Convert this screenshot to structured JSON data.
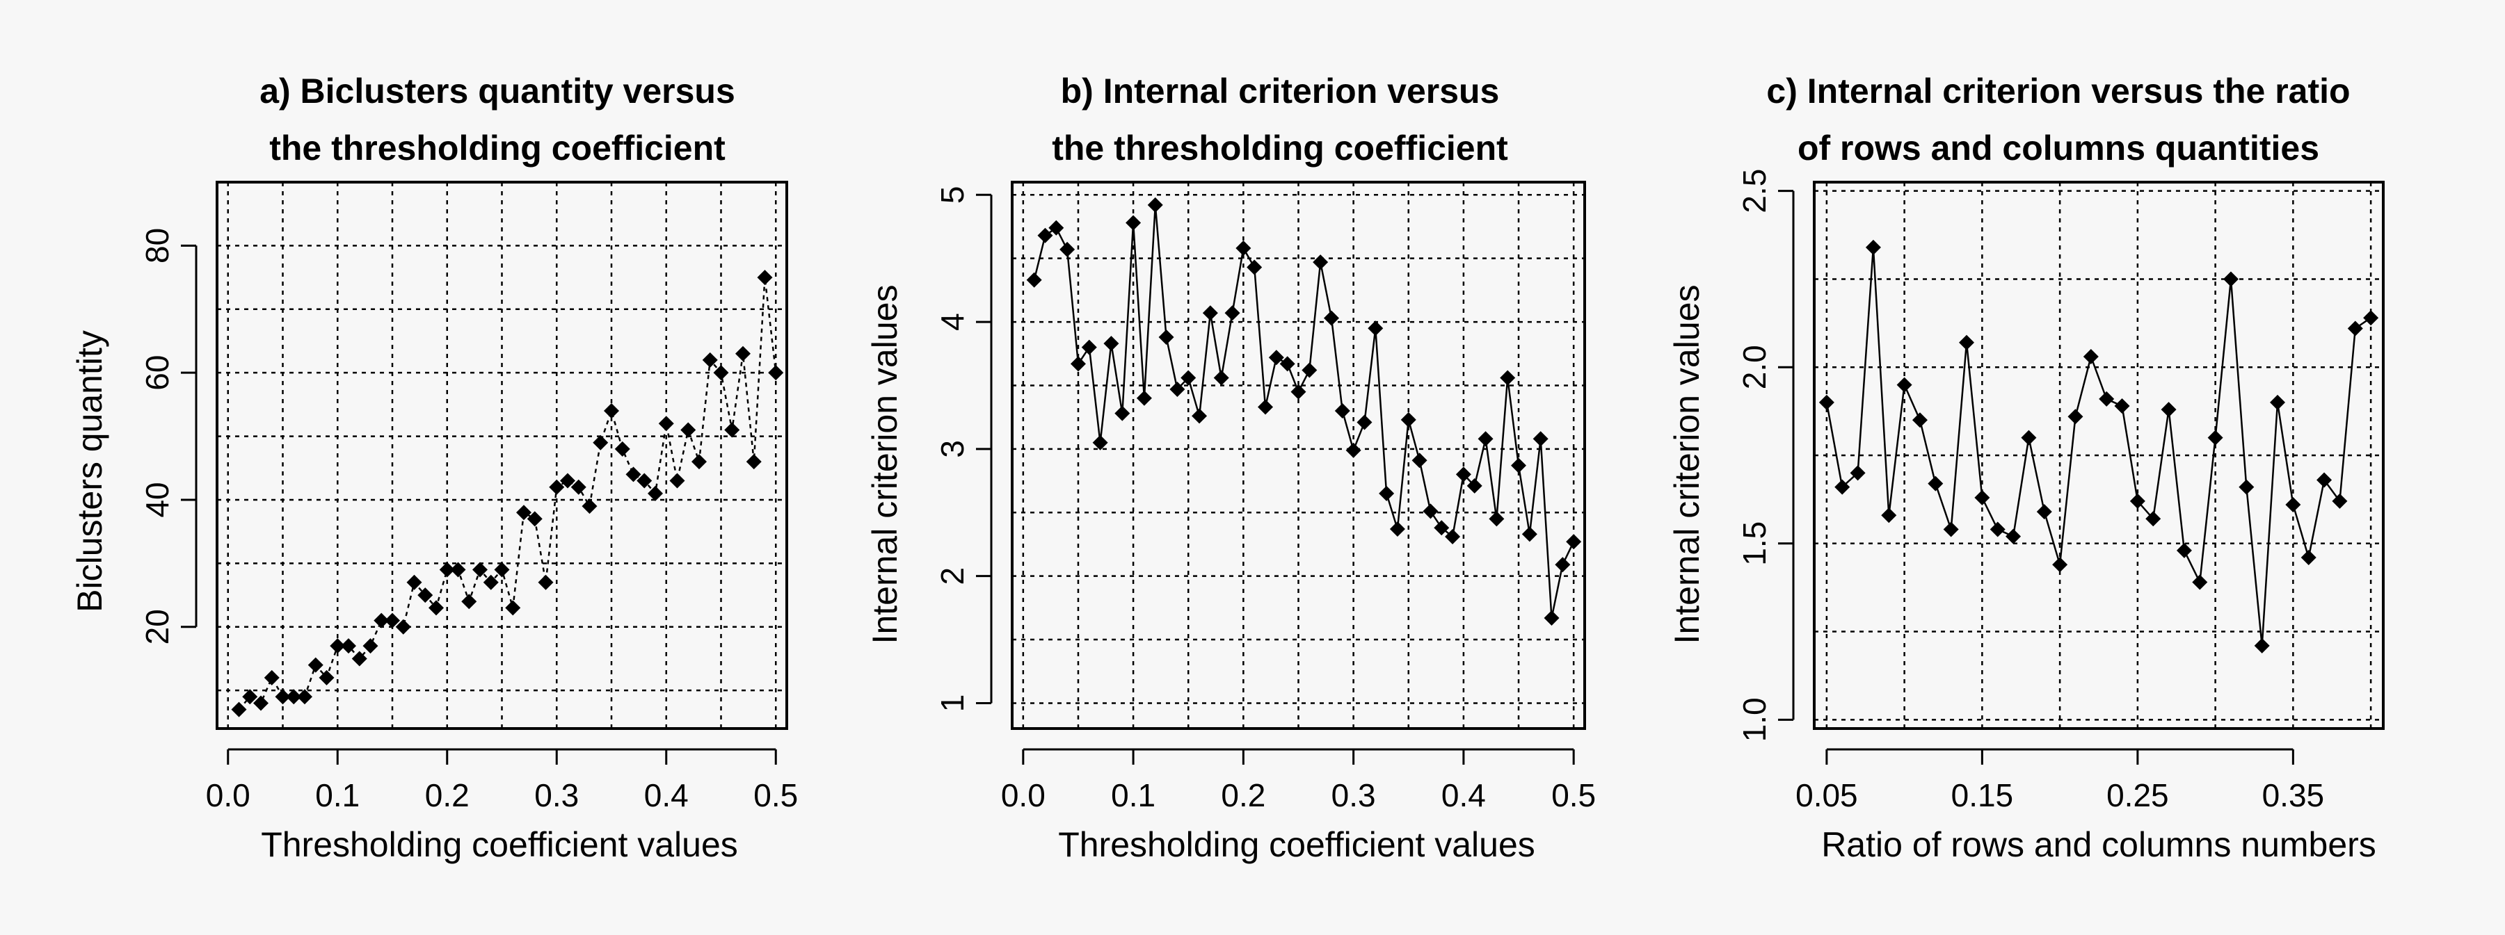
{
  "chart_data": [
    {
      "type": "line",
      "title": [
        "a) Biclusters quantity versus",
        "the thresholding coefficient"
      ],
      "xlabel": "Thresholding coefficient values",
      "ylabel": "Biclusters quantity",
      "xlim": [
        -0.01,
        0.51
      ],
      "ylim": [
        4,
        90
      ],
      "xticks": [
        0.0,
        0.1,
        0.2,
        0.3,
        0.4,
        0.5
      ],
      "xtick_labels": [
        "0.0",
        "0.1",
        "0.2",
        "0.3",
        "0.4",
        "0.5"
      ],
      "yticks": [
        20,
        40,
        60,
        80
      ],
      "ytick_labels": [
        "20",
        "40",
        "60",
        "80"
      ],
      "xgrid": [
        0.0,
        0.05,
        0.1,
        0.15,
        0.2,
        0.25,
        0.3,
        0.35,
        0.4,
        0.45,
        0.5
      ],
      "ygrid": [
        10,
        20,
        30,
        40,
        50,
        60,
        70,
        80,
        90
      ],
      "grid": true,
      "series": [
        {
          "marker": "diamond",
          "line": "dashed",
          "x": [
            0.01,
            0.02,
            0.03,
            0.04,
            0.05,
            0.06,
            0.07,
            0.08,
            0.09,
            0.1,
            0.11,
            0.12,
            0.13,
            0.14,
            0.15,
            0.16,
            0.17,
            0.18,
            0.19,
            0.2,
            0.21,
            0.22,
            0.23,
            0.24,
            0.25,
            0.26,
            0.27,
            0.28,
            0.29,
            0.3,
            0.31,
            0.32,
            0.33,
            0.34,
            0.35,
            0.36,
            0.37,
            0.38,
            0.39,
            0.4,
            0.41,
            0.42,
            0.43,
            0.44,
            0.45,
            0.46,
            0.47,
            0.48,
            0.49,
            0.5
          ],
          "y": [
            7,
            9,
            8,
            12,
            9,
            9,
            9,
            14,
            12,
            17,
            17,
            15,
            17,
            21,
            21,
            20,
            27,
            25,
            23,
            29,
            29,
            24,
            29,
            27,
            29,
            23,
            38,
            37,
            27,
            42,
            43,
            42,
            39,
            49,
            54,
            48,
            44,
            43,
            41,
            52,
            43,
            51,
            46,
            62,
            60,
            51,
            63,
            46,
            75,
            60
          ]
        }
      ]
    },
    {
      "type": "line",
      "title": [
        "b) Internal criterion versus",
        "the thresholding coefficient"
      ],
      "xlabel": "Thresholding coefficient values",
      "ylabel": "Internal criterion values",
      "xlim": [
        -0.01,
        0.51
      ],
      "ylim": [
        0.8,
        5.1
      ],
      "xticks": [
        0.0,
        0.1,
        0.2,
        0.3,
        0.4,
        0.5
      ],
      "xtick_labels": [
        "0.0",
        "0.1",
        "0.2",
        "0.3",
        "0.4",
        "0.5"
      ],
      "yticks": [
        1,
        2,
        3,
        4,
        5
      ],
      "ytick_labels": [
        "1",
        "2",
        "3",
        "4",
        "5"
      ],
      "xgrid": [
        0.0,
        0.05,
        0.1,
        0.15,
        0.2,
        0.25,
        0.3,
        0.35,
        0.4,
        0.45,
        0.5
      ],
      "ygrid": [
        1.0,
        1.5,
        2.0,
        2.5,
        3.0,
        3.5,
        4.0,
        4.5,
        5.0
      ],
      "grid": true,
      "series": [
        {
          "marker": "diamond",
          "line": "solid",
          "x": [
            0.01,
            0.02,
            0.03,
            0.04,
            0.05,
            0.06,
            0.07,
            0.08,
            0.09,
            0.1,
            0.11,
            0.12,
            0.13,
            0.14,
            0.15,
            0.16,
            0.17,
            0.18,
            0.19,
            0.2,
            0.21,
            0.22,
            0.23,
            0.24,
            0.25,
            0.26,
            0.27,
            0.28,
            0.29,
            0.3,
            0.31,
            0.32,
            0.33,
            0.34,
            0.35,
            0.36,
            0.37,
            0.38,
            0.39,
            0.4,
            0.41,
            0.42,
            0.43,
            0.44,
            0.45,
            0.46,
            0.47,
            0.48,
            0.49,
            0.5
          ],
          "y": [
            4.33,
            4.68,
            4.74,
            4.57,
            3.67,
            3.8,
            3.05,
            3.83,
            3.28,
            4.78,
            3.4,
            4.92,
            3.88,
            3.47,
            3.56,
            3.26,
            4.07,
            3.56,
            4.07,
            4.58,
            4.43,
            3.33,
            3.72,
            3.67,
            3.45,
            3.62,
            4.47,
            4.03,
            3.3,
            2.99,
            3.21,
            3.95,
            2.65,
            2.37,
            3.23,
            2.91,
            2.51,
            2.38,
            2.31,
            2.8,
            2.71,
            3.08,
            2.45,
            3.56,
            2.87,
            2.33,
            3.08,
            1.67,
            2.09,
            2.27
          ]
        }
      ]
    },
    {
      "type": "line",
      "title": [
        "c) Internal criterion versus the ratio",
        "of rows and columns quantities"
      ],
      "xlabel": "Ratio of rows and columns numbers",
      "ylabel": "Internal criterion values",
      "xlim": [
        0.042,
        0.408
      ],
      "ylim": [
        0.975,
        2.525
      ],
      "xticks": [
        0.05,
        0.15,
        0.25,
        0.35
      ],
      "xtick_labels": [
        "0.05",
        "0.15",
        "0.25",
        "0.35"
      ],
      "yticks": [
        1.0,
        1.5,
        2.0,
        2.5
      ],
      "ytick_labels": [
        "1.0",
        "1.5",
        "2.0",
        "2.5"
      ],
      "xgrid": [
        0.05,
        0.1,
        0.15,
        0.2,
        0.25,
        0.3,
        0.35,
        0.4
      ],
      "ygrid": [
        1.0,
        1.25,
        1.5,
        1.75,
        2.0,
        2.25,
        2.5
      ],
      "grid": true,
      "series": [
        {
          "marker": "diamond",
          "line": "solid",
          "x": [
            0.05,
            0.06,
            0.07,
            0.08,
            0.09,
            0.1,
            0.11,
            0.12,
            0.13,
            0.14,
            0.15,
            0.16,
            0.17,
            0.18,
            0.19,
            0.2,
            0.21,
            0.22,
            0.23,
            0.24,
            0.25,
            0.26,
            0.27,
            0.28,
            0.29,
            0.3,
            0.31,
            0.32,
            0.33,
            0.34,
            0.35,
            0.36,
            0.37,
            0.38,
            0.39,
            0.4
          ],
          "y": [
            1.9,
            1.66,
            1.7,
            2.34,
            1.58,
            1.95,
            1.85,
            1.67,
            1.54,
            2.07,
            1.63,
            1.54,
            1.52,
            1.8,
            1.59,
            1.44,
            1.86,
            2.03,
            1.91,
            1.89,
            1.62,
            1.57,
            1.88,
            1.48,
            1.39,
            1.8,
            2.25,
            1.66,
            1.21,
            1.9,
            1.61,
            1.46,
            1.68,
            1.62,
            2.11,
            2.14
          ]
        }
      ]
    }
  ]
}
